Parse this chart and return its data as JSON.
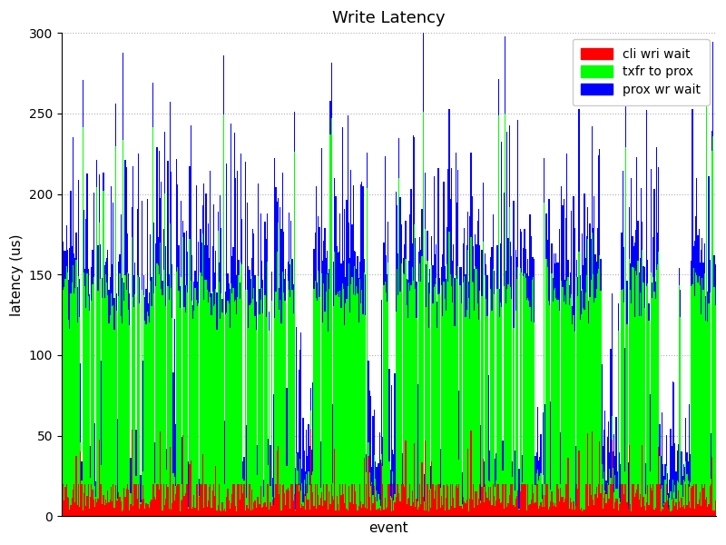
{
  "title": "Write Latency",
  "xlabel": "event",
  "ylabel": "latency (us)",
  "ylim": [
    0,
    300
  ],
  "yticks": [
    0,
    50,
    100,
    150,
    200,
    250,
    300
  ],
  "legend_labels": [
    "cli wri wait",
    "txfr to prox",
    "prox wr wait"
  ],
  "legend_colors": [
    "#ff0000",
    "#00ff00",
    "#0000ff"
  ],
  "background_color": "#ffffff",
  "grid_color": "#b0b0b0",
  "figsize": [
    8,
    6
  ],
  "dpi": 100,
  "title_fontsize": 13,
  "axis_label_fontsize": 11,
  "tick_fontsize": 10,
  "n_events": 600,
  "seed": 7
}
